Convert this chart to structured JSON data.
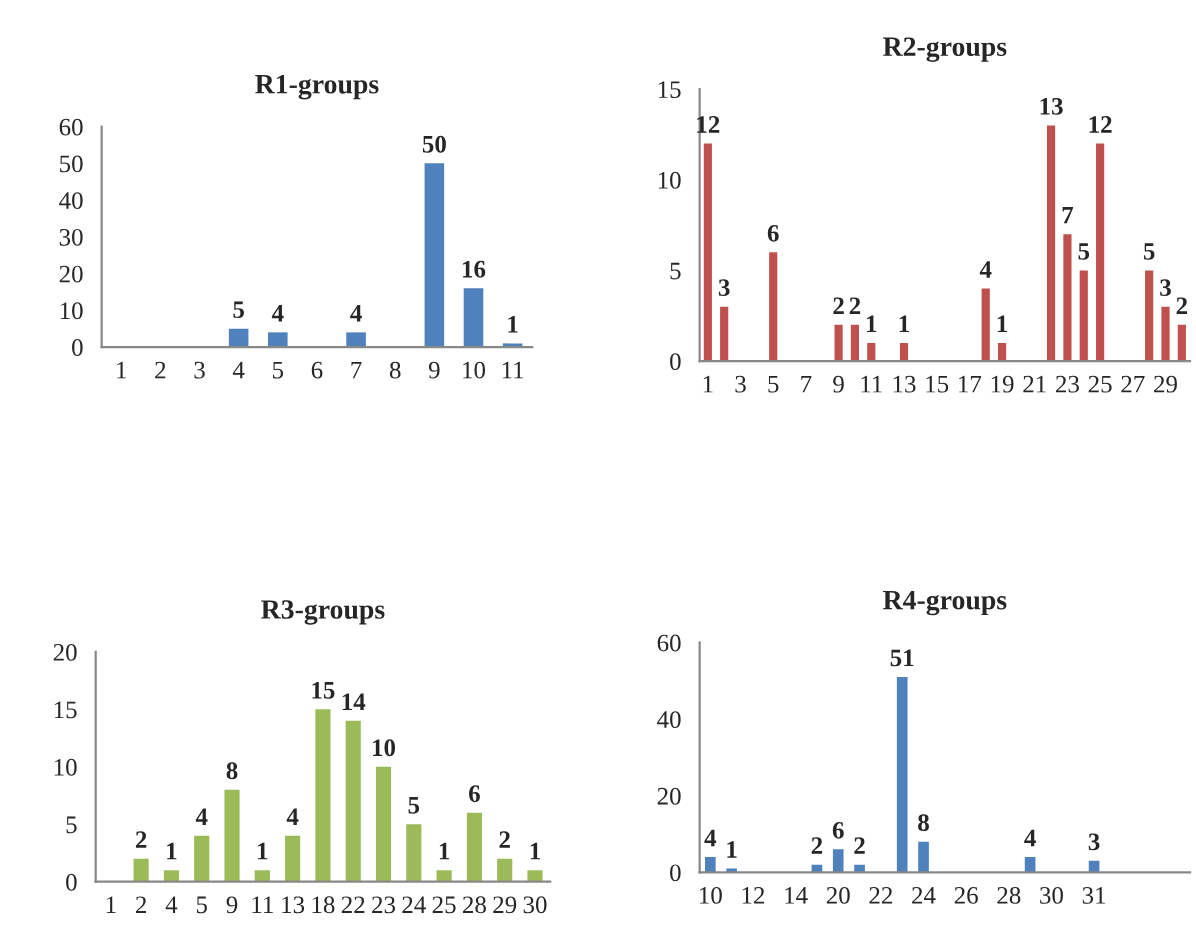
{
  "chart_data": [
    {
      "type": "bar",
      "title": "R1-groups",
      "categories": [
        "1",
        "2",
        "3",
        "4",
        "5",
        "6",
        "7",
        "8",
        "9",
        "10",
        "11"
      ],
      "color": "#4f81bd",
      "values": [
        0,
        0,
        0,
        5,
        4,
        0,
        4,
        0,
        50,
        16,
        1
      ],
      "value_labels": [
        null,
        null,
        null,
        "5",
        "4",
        null,
        "4",
        null,
        "50",
        "16",
        "1"
      ],
      "ylim": [
        0,
        60
      ],
      "yticks": [
        0,
        10,
        20,
        30,
        40,
        50,
        60
      ],
      "grid": false,
      "legend": false
    },
    {
      "type": "bar",
      "title": "R2-groups",
      "categories": [
        "1",
        null,
        "3",
        null,
        "5",
        null,
        "7",
        null,
        "9",
        null,
        "11",
        null,
        "13",
        null,
        "15",
        null,
        "17",
        null,
        "19",
        null,
        "21",
        null,
        "23",
        null,
        "25",
        null,
        "27",
        null,
        "29",
        null
      ],
      "color": "#c0504d",
      "values": [
        12,
        3,
        0,
        0,
        6,
        0,
        0,
        0,
        2,
        2,
        1,
        0,
        1,
        0,
        0,
        0,
        0,
        4,
        1,
        0,
        0,
        13,
        7,
        5,
        12,
        0,
        0,
        5,
        3,
        2
      ],
      "value_labels": [
        "12",
        "3",
        null,
        null,
        "6",
        null,
        null,
        null,
        "2",
        "2",
        "1",
        null,
        "1",
        null,
        null,
        null,
        null,
        "4",
        "1",
        null,
        null,
        "13",
        "7",
        "5",
        "12",
        null,
        null,
        "5",
        "3",
        "2"
      ],
      "ylim": [
        0,
        15
      ],
      "yticks": [
        0,
        5,
        10,
        15
      ],
      "grid": false,
      "legend": false
    },
    {
      "type": "bar",
      "title": "R3-groups",
      "categories": [
        "1",
        "2",
        "4",
        "5",
        "9",
        "11",
        "13",
        "18",
        "22",
        "23",
        "24",
        "25",
        "28",
        "29",
        "30"
      ],
      "color": "#9bbb59",
      "values": [
        0,
        2,
        1,
        4,
        8,
        1,
        4,
        15,
        14,
        10,
        5,
        1,
        6,
        2,
        1
      ],
      "value_labels": [
        null,
        "2",
        "1",
        "4",
        "8",
        "1",
        "4",
        "15",
        "14",
        "10",
        "5",
        "1",
        "6",
        "2",
        "1"
      ],
      "ylim": [
        0,
        20
      ],
      "yticks": [
        0,
        5,
        10,
        15,
        20
      ],
      "grid": false,
      "legend": false
    },
    {
      "type": "bar",
      "title": "R4-groups",
      "categories": [
        "10",
        null,
        "12",
        null,
        "14",
        null,
        "20",
        null,
        "22",
        null,
        "24",
        null,
        "26",
        null,
        "28",
        null,
        "30",
        null,
        "31",
        null,
        null,
        null,
        null
      ],
      "color": "#4f81bd",
      "values": [
        4,
        1,
        0,
        0,
        0,
        2,
        6,
        2,
        0,
        51,
        8,
        0,
        0,
        0,
        0,
        4,
        0,
        0,
        3,
        0,
        0,
        0,
        0
      ],
      "value_labels": [
        "4",
        "1",
        null,
        null,
        null,
        "2",
        "6",
        "2",
        null,
        "51",
        "8",
        null,
        null,
        null,
        null,
        "4",
        null,
        null,
        "3",
        null,
        null,
        null,
        null
      ],
      "ylim": [
        0,
        60
      ],
      "yticks": [
        0,
        20,
        40,
        60
      ],
      "grid": false,
      "legend": false
    }
  ]
}
